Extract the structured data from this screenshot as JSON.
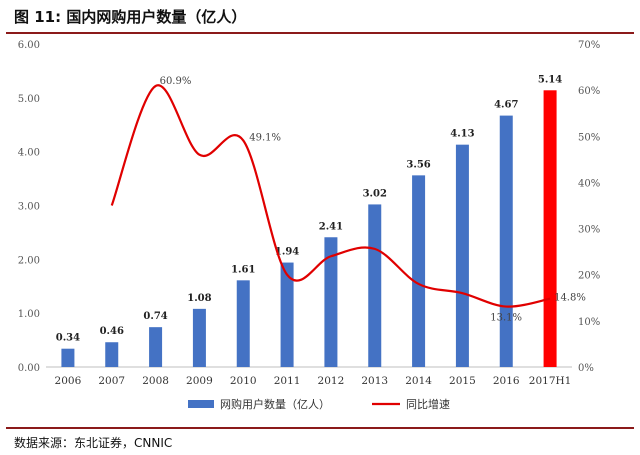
{
  "header": {
    "title": "图 11: 国内网购用户数量（亿人）"
  },
  "source": "数据来源：东北证券，CNNIC",
  "chart_data": {
    "type": "bar+line",
    "title": "国内网购用户数量（亿人）",
    "categories": [
      "2006",
      "2007",
      "2008",
      "2009",
      "2010",
      "2011",
      "2012",
      "2013",
      "2014",
      "2015",
      "2016",
      "2017H1"
    ],
    "series": [
      {
        "name": "网购用户数量（亿人）",
        "type": "bar",
        "axis": "left",
        "values": [
          0.34,
          0.46,
          0.74,
          1.08,
          1.61,
          1.94,
          2.41,
          3.02,
          3.56,
          4.13,
          4.67,
          5.14
        ],
        "labels": [
          "0.34",
          "0.46",
          "0.74",
          "1.08",
          "1.61",
          "1.94",
          "2.41",
          "3.02",
          "3.56",
          "4.13",
          "4.67",
          "5.14"
        ],
        "color": "#4472C4",
        "highlight_color": "#FF0000",
        "highlight_index": 11
      },
      {
        "name": "同比增速",
        "type": "line",
        "axis": "right",
        "values": [
          null,
          35,
          60.9,
          46,
          49.1,
          20,
          24,
          25.6,
          18,
          16,
          13.1,
          14.8
        ],
        "color": "#E00000",
        "labels": [
          {
            "index": 2,
            "text": "60.9%"
          },
          {
            "index": 4,
            "text": "49.1%"
          },
          {
            "index": 10,
            "text": "13.1%"
          },
          {
            "index": 11,
            "text": "14.8%"
          }
        ]
      }
    ],
    "y_left": {
      "min": 0,
      "max": 6,
      "ticks": [
        "0.00",
        "1.00",
        "2.00",
        "3.00",
        "4.00",
        "5.00",
        "6.00"
      ]
    },
    "y_right": {
      "min": 0,
      "max": 70,
      "ticks": [
        "0%",
        "10%",
        "20%",
        "30%",
        "40%",
        "50%",
        "60%",
        "70%"
      ]
    },
    "legend": {
      "position": "bottom-center",
      "items": [
        "网购用户数量（亿人）",
        "同比增速"
      ]
    }
  }
}
